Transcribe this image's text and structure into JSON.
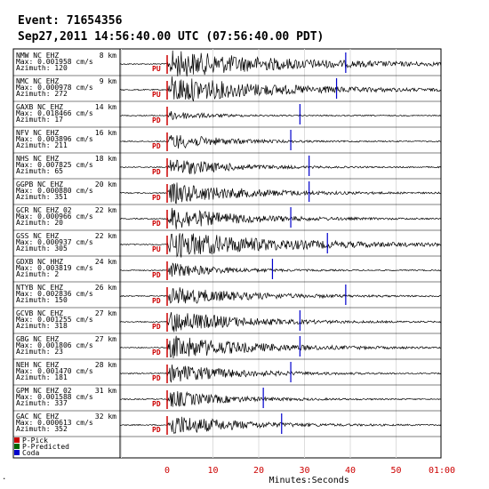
{
  "header": {
    "event": "Event: 71654356",
    "time": "Sep27,2011 14:56:40.00 UTC (07:56:40.00 PDT)"
  },
  "legend": [
    {
      "label": "P-Pick",
      "color": "#cc0000"
    },
    {
      "label": "P-Predicted",
      "color": "#006600"
    },
    {
      "label": "Coda",
      "color": "#0000cc"
    }
  ],
  "chart_data": {
    "type": "seismogram",
    "xlabel": "Minutes:Seconds",
    "x_ticks": [
      0,
      10,
      20,
      30,
      40,
      50,
      60
    ],
    "x_tick_labels": [
      "0",
      "10",
      "20",
      "30",
      "40",
      "50",
      "01:00"
    ],
    "xlim": [
      -10,
      63
    ],
    "grid": true,
    "colors": {
      "pick": "#cc0000",
      "coda": "#0000cc",
      "trace": "#000000",
      "grid": "#dddddd",
      "axis_labels": "#cc0000"
    },
    "stations": [
      {
        "name": "NMW  NC EHZ",
        "dist": "8 km",
        "max": "Max: 0.001958 cm/s",
        "az": "Azimuth: 120",
        "pick": "PU",
        "coda_s": 39,
        "amp": 1.0,
        "decay": 26
      },
      {
        "name": "NMC  NC EHZ",
        "dist": "9 km",
        "max": "Max: 0.000978 cm/s",
        "az": "Azimuth: 272",
        "pick": "PU",
        "coda_s": 37,
        "amp": 1.0,
        "decay": 22
      },
      {
        "name": "GAXB NC EHZ",
        "dist": "14 km",
        "max": "Max: 0.018466 cm/s",
        "az": "Azimuth: 17",
        "pick": "PD",
        "coda_s": 29,
        "amp": 0.35,
        "decay": 8
      },
      {
        "name": "NFV  NC EHZ",
        "dist": "16 km",
        "max": "Max: 0.003896 cm/s",
        "az": "Azimuth: 211",
        "pick": "PD",
        "coda_s": 27,
        "amp": 0.6,
        "decay": 11
      },
      {
        "name": "NHS  NC EHZ",
        "dist": "18 km",
        "max": "Max: 0.007825 cm/s",
        "az": "Azimuth: 65",
        "pick": "PD",
        "coda_s": 31,
        "amp": 0.7,
        "decay": 12
      },
      {
        "name": "GGPB NC EHZ",
        "dist": "20 km",
        "max": "Max: 0.000880 cm/s",
        "az": "Azimuth: 351",
        "pick": "PD",
        "coda_s": 31,
        "amp": 0.8,
        "decay": 16
      },
      {
        "name": "GCR  NC EHZ 02",
        "dist": "22 km",
        "max": "Max: 0.000966 cm/s",
        "az": "Azimuth: 20",
        "pick": "PD",
        "coda_s": 27,
        "amp": 0.85,
        "decay": 15
      },
      {
        "name": "GSS  NC EHZ",
        "dist": "22 km",
        "max": "Max: 0.000937 cm/s",
        "az": "Azimuth: 305",
        "pick": "PU",
        "coda_s": 35,
        "amp": 1.0,
        "decay": 24
      },
      {
        "name": "GDXB NC HHZ",
        "dist": "24 km",
        "max": "Max: 0.003819 cm/s",
        "az": "Azimuth: 2",
        "pick": "PD",
        "coda_s": 23,
        "amp": 0.55,
        "decay": 11
      },
      {
        "name": "NTYB NC EHZ",
        "dist": "26 km",
        "max": "Max: 0.002836 cm/s",
        "az": "Azimuth: 150",
        "pick": "PD",
        "coda_s": 39,
        "amp": 0.7,
        "decay": 16
      },
      {
        "name": "GCVB NC EHZ",
        "dist": "27 km",
        "max": "Max: 0.001255 cm/s",
        "az": "Azimuth: 318",
        "pick": "PD",
        "coda_s": 29,
        "amp": 0.85,
        "decay": 15
      },
      {
        "name": "GBG  NC EHZ",
        "dist": "27 km",
        "max": "Max: 0.001806 cm/s",
        "az": "Azimuth: 23",
        "pick": "PD",
        "coda_s": 29,
        "amp": 0.9,
        "decay": 17
      },
      {
        "name": "NEH  NC EHZ",
        "dist": "28 km",
        "max": "Max: 0.001470 cm/s",
        "az": "Azimuth: 181",
        "pick": "PD",
        "coda_s": 27,
        "amp": 0.7,
        "decay": 14
      },
      {
        "name": "GPM  NC EHZ 02",
        "dist": "31 km",
        "max": "Max: 0.001588 cm/s",
        "az": "Azimuth: 337",
        "pick": "PD",
        "coda_s": 21,
        "amp": 0.65,
        "decay": 12
      },
      {
        "name": "GAC  NC EHZ",
        "dist": "32 km",
        "max": "Max: 0.000613 cm/s",
        "az": "Azimuth: 352",
        "pick": "PD",
        "coda_s": 25,
        "amp": 0.8,
        "decay": 14
      }
    ]
  }
}
